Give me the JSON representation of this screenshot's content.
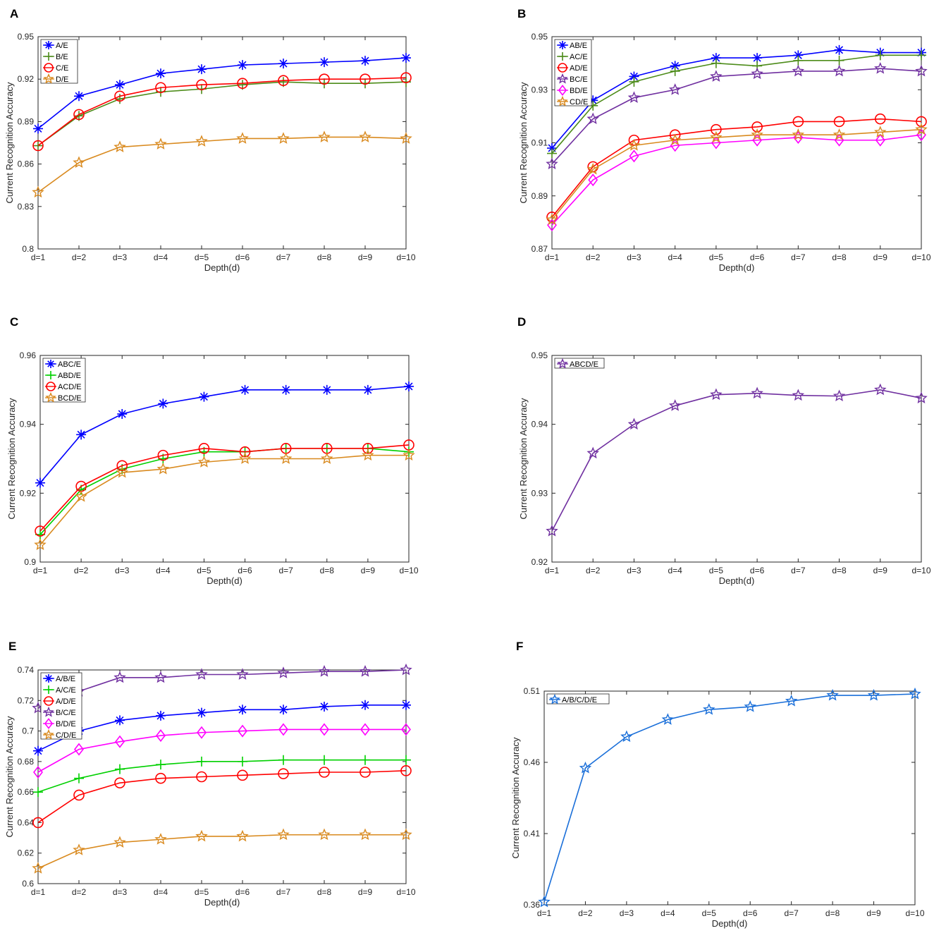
{
  "chart_data": [
    {
      "type": "line",
      "panel_label": "A",
      "xlabel": "Depth(d)",
      "ylabel": "Current Recognition Accuracy",
      "categories": [
        "d=1",
        "d=2",
        "d=3",
        "d=4",
        "d=5",
        "d=6",
        "d=7",
        "d=8",
        "d=9",
        "d=10"
      ],
      "ylim": [
        0.8,
        0.95
      ],
      "yticks": [
        0.8,
        0.83,
        0.86,
        0.89,
        0.92,
        0.95
      ],
      "ytick_labels": [
        "0.8",
        "0.83",
        "0.86",
        "0.89",
        "0.92",
        "0.95"
      ],
      "legend_position": "top-left",
      "series": [
        {
          "name": "A/E",
          "color": "#0000ff",
          "marker": "asterisk",
          "values": [
            0.885,
            0.908,
            0.916,
            0.924,
            0.927,
            0.93,
            0.931,
            0.932,
            0.933,
            0.935
          ]
        },
        {
          "name": "B/E",
          "color": "#4d8c1a",
          "marker": "plus",
          "values": [
            0.873,
            0.894,
            0.906,
            0.911,
            0.913,
            0.916,
            0.918,
            0.917,
            0.917,
            0.918
          ]
        },
        {
          "name": "C/E",
          "color": "#ff0000",
          "marker": "circle",
          "values": [
            0.873,
            0.895,
            0.908,
            0.914,
            0.916,
            0.917,
            0.919,
            0.92,
            0.92,
            0.921
          ]
        },
        {
          "name": "D/E",
          "color": "#d98a1f",
          "marker": "star",
          "values": [
            0.84,
            0.861,
            0.872,
            0.874,
            0.876,
            0.878,
            0.878,
            0.879,
            0.879,
            0.878
          ]
        }
      ]
    },
    {
      "type": "line",
      "panel_label": "B",
      "xlabel": "Depth(d)",
      "ylabel": "Current Recognition Accuracy",
      "categories": [
        "d=1",
        "d=2",
        "d=3",
        "d=4",
        "d=5",
        "d=6",
        "d=7",
        "d=8",
        "d=9",
        "d=10"
      ],
      "ylim": [
        0.87,
        0.95
      ],
      "yticks": [
        0.87,
        0.89,
        0.91,
        0.93,
        0.95
      ],
      "ytick_labels": [
        "0.87",
        "0.89",
        "0.91",
        "0.93",
        "0.95"
      ],
      "legend_position": "top-left",
      "series": [
        {
          "name": "AB/E",
          "color": "#0000ff",
          "marker": "asterisk",
          "values": [
            0.908,
            0.926,
            0.935,
            0.939,
            0.942,
            0.942,
            0.943,
            0.945,
            0.944,
            0.944
          ]
        },
        {
          "name": "AC/E",
          "color": "#4d8c1a",
          "marker": "plus",
          "values": [
            0.906,
            0.924,
            0.933,
            0.937,
            0.94,
            0.939,
            0.941,
            0.941,
            0.943,
            0.943
          ]
        },
        {
          "name": "AD/E",
          "color": "#ff0000",
          "marker": "circle",
          "values": [
            0.882,
            0.901,
            0.911,
            0.913,
            0.915,
            0.916,
            0.918,
            0.918,
            0.919,
            0.918
          ]
        },
        {
          "name": "BC/E",
          "color": "#7030a0",
          "marker": "star",
          "values": [
            0.902,
            0.919,
            0.927,
            0.93,
            0.935,
            0.936,
            0.937,
            0.937,
            0.938,
            0.937
          ]
        },
        {
          "name": "BD/E",
          "color": "#ff00ff",
          "marker": "diamond",
          "values": [
            0.879,
            0.896,
            0.905,
            0.909,
            0.91,
            0.911,
            0.912,
            0.911,
            0.911,
            0.913
          ]
        },
        {
          "name": "CD/E",
          "color": "#d98a1f",
          "marker": "star",
          "values": [
            0.881,
            0.9,
            0.909,
            0.911,
            0.912,
            0.913,
            0.913,
            0.913,
            0.914,
            0.915
          ]
        }
      ]
    },
    {
      "type": "line",
      "panel_label": "C",
      "xlabel": "Depth(d)",
      "ylabel": "Current Recognition Accuracy",
      "categories": [
        "d=1",
        "d=2",
        "d=3",
        "d=4",
        "d=5",
        "d=6",
        "d=7",
        "d=8",
        "d=9",
        "d=10"
      ],
      "ylim": [
        0.9,
        0.96
      ],
      "yticks": [
        0.9,
        0.92,
        0.94,
        0.96
      ],
      "ytick_labels": [
        "0.9",
        "0.92",
        "0.94",
        "0.96"
      ],
      "legend_position": "top-left",
      "series": [
        {
          "name": "ABC/E",
          "color": "#0000ff",
          "marker": "asterisk",
          "values": [
            0.923,
            0.937,
            0.943,
            0.946,
            0.948,
            0.95,
            0.95,
            0.95,
            0.95,
            0.951
          ]
        },
        {
          "name": "ABD/E",
          "color": "#00d000",
          "marker": "plus",
          "values": [
            0.908,
            0.921,
            0.927,
            0.93,
            0.932,
            0.932,
            0.933,
            0.933,
            0.933,
            0.932
          ]
        },
        {
          "name": "ACD/E",
          "color": "#ff0000",
          "marker": "circle",
          "values": [
            0.909,
            0.922,
            0.928,
            0.931,
            0.933,
            0.932,
            0.933,
            0.933,
            0.933,
            0.934
          ]
        },
        {
          "name": "BCD/E",
          "color": "#d98a1f",
          "marker": "star",
          "values": [
            0.905,
            0.919,
            0.926,
            0.927,
            0.929,
            0.93,
            0.93,
            0.93,
            0.931,
            0.931
          ]
        }
      ]
    },
    {
      "type": "line",
      "panel_label": "D",
      "xlabel": "Depth(d)",
      "ylabel": "Current Recognition Accuracy",
      "categories": [
        "d=1",
        "d=2",
        "d=3",
        "d=4",
        "d=5",
        "d=6",
        "d=7",
        "d=8",
        "d=9",
        "d=10"
      ],
      "ylim": [
        0.92,
        0.95
      ],
      "yticks": [
        0.92,
        0.93,
        0.94,
        0.95
      ],
      "ytick_labels": [
        "0.92",
        "0.93",
        "0.94",
        "0.95"
      ],
      "legend_position": "top-left",
      "series": [
        {
          "name": "ABCD/E",
          "color": "#7030a0",
          "marker": "star",
          "values": [
            0.9245,
            0.9358,
            0.94,
            0.9427,
            0.9443,
            0.9445,
            0.9442,
            0.9441,
            0.945,
            0.9438
          ]
        }
      ]
    },
    {
      "type": "line",
      "panel_label": "E",
      "xlabel": "Depth(d)",
      "ylabel": "Current Recognition Accuracy",
      "categories": [
        "d=1",
        "d=2",
        "d=3",
        "d=4",
        "d=5",
        "d=6",
        "d=7",
        "d=8",
        "d=9",
        "d=10"
      ],
      "ylim": [
        0.6,
        0.74
      ],
      "yticks": [
        0.6,
        0.62,
        0.64,
        0.66,
        0.68,
        0.7,
        0.72,
        0.74
      ],
      "ytick_labels": [
        "0.6",
        "0.62",
        "0.64",
        "0.66",
        "0.68",
        "0.7",
        "0.72",
        "0.74"
      ],
      "legend_position": "top-left",
      "series": [
        {
          "name": "A/B/E",
          "color": "#0000ff",
          "marker": "asterisk",
          "values": [
            0.687,
            0.7,
            0.707,
            0.71,
            0.712,
            0.714,
            0.714,
            0.716,
            0.717,
            0.717
          ]
        },
        {
          "name": "A/C/E",
          "color": "#00d000",
          "marker": "plus",
          "values": [
            0.66,
            0.669,
            0.675,
            0.678,
            0.68,
            0.68,
            0.681,
            0.681,
            0.681,
            0.681
          ]
        },
        {
          "name": "A/D/E",
          "color": "#ff0000",
          "marker": "circle",
          "values": [
            0.64,
            0.658,
            0.666,
            0.669,
            0.67,
            0.671,
            0.672,
            0.673,
            0.673,
            0.674
          ]
        },
        {
          "name": "B/C/E",
          "color": "#7030a0",
          "marker": "star",
          "values": [
            0.715,
            0.726,
            0.735,
            0.735,
            0.737,
            0.737,
            0.738,
            0.739,
            0.739,
            0.74
          ]
        },
        {
          "name": "B/D/E",
          "color": "#ff00ff",
          "marker": "diamond",
          "values": [
            0.673,
            0.688,
            0.693,
            0.697,
            0.699,
            0.7,
            0.701,
            0.701,
            0.701,
            0.701
          ]
        },
        {
          "name": "C/D/E",
          "color": "#d98a1f",
          "marker": "star",
          "values": [
            0.61,
            0.622,
            0.627,
            0.629,
            0.631,
            0.631,
            0.632,
            0.632,
            0.632,
            0.632
          ]
        }
      ]
    },
    {
      "type": "line",
      "panel_label": "F",
      "xlabel": "Depth(d)",
      "ylabel": "Current Recognition Accuracy",
      "categories": [
        "d=1",
        "d=2",
        "d=3",
        "d=4",
        "d=5",
        "d=6",
        "d=7",
        "d=8",
        "d=9",
        "d=10"
      ],
      "ylim": [
        0.36,
        0.51
      ],
      "yticks": [
        0.36,
        0.41,
        0.46,
        0.51
      ],
      "ytick_labels": [
        "0.36",
        "0.41",
        "0.46",
        "0.51"
      ],
      "legend_position": "top-left",
      "series": [
        {
          "name": "A/B/C/D/E",
          "color": "#1a6fd9",
          "marker": "star",
          "values": [
            0.362,
            0.456,
            0.478,
            0.49,
            0.497,
            0.499,
            0.503,
            0.507,
            0.507,
            0.508
          ]
        }
      ]
    }
  ]
}
